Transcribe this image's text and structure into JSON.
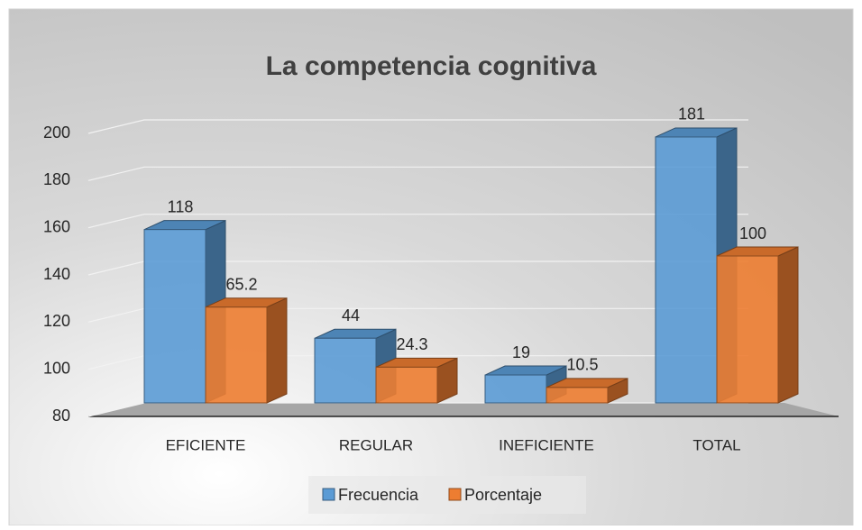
{
  "chart_data": {
    "type": "bar3d",
    "title": "La competencia cognitiva",
    "categories": [
      "EFICIENTE",
      "REGULAR",
      "INEFICIENTE",
      "TOTAL"
    ],
    "series": [
      {
        "name": "Frecuencia",
        "color": "#5b9bd5",
        "values": [
          118,
          44,
          19,
          181
        ]
      },
      {
        "name": "Porcentaje",
        "color": "#ed7d31",
        "values": [
          65.2,
          24.3,
          10.5,
          100
        ]
      }
    ],
    "ylim": [
      80,
      200
    ],
    "yticks": [
      80,
      100,
      120,
      140,
      160,
      180,
      200
    ],
    "grid": true,
    "legend": "bottom"
  }
}
